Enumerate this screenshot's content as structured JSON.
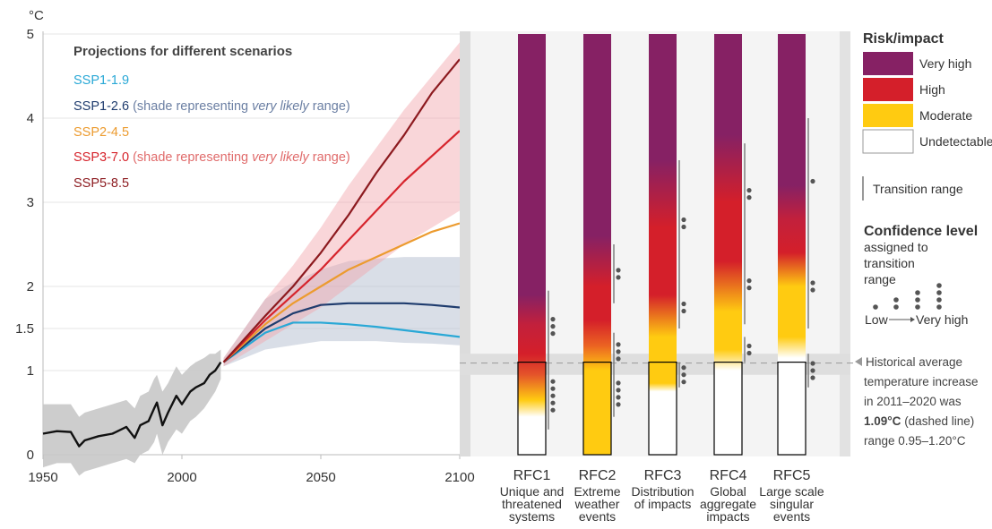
{
  "chart_data": [
    {
      "type": "line",
      "ylabel": "°C",
      "xlim": [
        1950,
        2100
      ],
      "ylim": [
        0,
        5
      ],
      "x_ticks": [
        "1950",
        "2000",
        "2050",
        "2100"
      ],
      "y_ticks": [
        "0",
        "1",
        "1.5",
        "2",
        "3",
        "4",
        "5"
      ],
      "grid": true,
      "legend_title": "Projections for different scenarios",
      "legend_position": "top-left",
      "observed": {
        "x": [
          1950,
          1955,
          1960,
          1963,
          1965,
          1970,
          1975,
          1980,
          1983,
          1985,
          1988,
          1990,
          1991,
          1993,
          1995,
          1998,
          2000,
          2003,
          2005,
          2008,
          2010,
          2012,
          2014
        ],
        "y": [
          0.25,
          0.28,
          0.27,
          0.1,
          0.17,
          0.22,
          0.25,
          0.33,
          0.2,
          0.35,
          0.4,
          0.55,
          0.62,
          0.35,
          0.5,
          0.7,
          0.6,
          0.75,
          0.8,
          0.85,
          0.95,
          1.0,
          1.1
        ],
        "range_low": [
          -0.15,
          -0.1,
          -0.1,
          -0.25,
          -0.2,
          -0.15,
          -0.1,
          -0.05,
          -0.1,
          0.0,
          0.05,
          0.15,
          0.25,
          0.0,
          0.15,
          0.3,
          0.25,
          0.4,
          0.45,
          0.55,
          0.65,
          0.75,
          0.9
        ],
        "range_high": [
          0.6,
          0.6,
          0.6,
          0.45,
          0.5,
          0.55,
          0.6,
          0.65,
          0.55,
          0.7,
          0.75,
          0.9,
          0.95,
          0.75,
          0.85,
          1.05,
          0.95,
          1.05,
          1.1,
          1.15,
          1.2,
          1.2,
          1.25
        ]
      },
      "series": [
        {
          "name": "SSP1-1.9",
          "color": "#29a8d6",
          "label": "SSP1-1.9",
          "x": [
            2015,
            2030,
            2040,
            2050,
            2060,
            2070,
            2080,
            2090,
            2100
          ],
          "y": [
            1.1,
            1.45,
            1.57,
            1.57,
            1.55,
            1.52,
            1.48,
            1.44,
            1.4
          ]
        },
        {
          "name": "SSP1-2.6",
          "color": "#1f3c6e",
          "label_main": "SSP1-2.6",
          "label_note": " (shade representing ",
          "label_em": "very likely",
          "label_end": " range)",
          "x": [
            2015,
            2030,
            2040,
            2050,
            2060,
            2070,
            2080,
            2090,
            2100
          ],
          "y": [
            1.1,
            1.5,
            1.68,
            1.78,
            1.8,
            1.8,
            1.8,
            1.78,
            1.75
          ],
          "range_low": [
            1.05,
            1.25,
            1.3,
            1.35,
            1.35,
            1.35,
            1.33,
            1.32,
            1.3
          ],
          "range_high": [
            1.15,
            1.85,
            2.05,
            2.2,
            2.3,
            2.33,
            2.35,
            2.35,
            2.35
          ]
        },
        {
          "name": "SSP2-4.5",
          "color": "#ec9b2f",
          "label": "SSP2-4.5",
          "x": [
            2015,
            2030,
            2040,
            2050,
            2060,
            2070,
            2080,
            2090,
            2100
          ],
          "y": [
            1.1,
            1.55,
            1.8,
            2.0,
            2.2,
            2.35,
            2.5,
            2.65,
            2.75
          ]
        },
        {
          "name": "SSP3-7.0",
          "color": "#d6242c",
          "label_main": "SSP3-7.0",
          "label_note": " (shade representing ",
          "label_em": "very likely",
          "label_end": " range)",
          "x": [
            2015,
            2030,
            2040,
            2050,
            2060,
            2070,
            2080,
            2090,
            2100
          ],
          "y": [
            1.1,
            1.6,
            1.9,
            2.2,
            2.55,
            2.9,
            3.25,
            3.55,
            3.85
          ],
          "range_low": [
            1.05,
            1.35,
            1.55,
            1.75,
            2.0,
            2.25,
            2.5,
            2.7,
            2.9
          ],
          "range_high": [
            1.15,
            1.85,
            2.25,
            2.7,
            3.2,
            3.65,
            4.1,
            4.5,
            4.9
          ]
        },
        {
          "name": "SSP5-8.5",
          "color": "#8c1a1f",
          "label": "SSP5-8.5",
          "x": [
            2015,
            2030,
            2040,
            2050,
            2060,
            2070,
            2080,
            2090,
            2100
          ],
          "y": [
            1.1,
            1.65,
            2.0,
            2.4,
            2.85,
            3.35,
            3.8,
            4.3,
            4.7
          ]
        }
      ],
      "historical_band": {
        "low": 0.95,
        "high": 1.2,
        "value": 1.09
      }
    },
    {
      "type": "heatmap",
      "title": "Risk/impact",
      "ylim": [
        0,
        5
      ],
      "legend_position": "right",
      "risk_levels": [
        {
          "label": "Very high",
          "color": "#862164"
        },
        {
          "label": "High",
          "color": "#d41f2a"
        },
        {
          "label": "Moderate",
          "color": "#ffcb11"
        },
        {
          "label": "Undetectable",
          "color": "#ffffff"
        }
      ],
      "transition_label": "Transition range",
      "confidence": {
        "title": "Confidence level",
        "subtitle": [
          "assigned to",
          "transition",
          "range"
        ],
        "low": "Low",
        "high": "Very high"
      },
      "historical_note": [
        "Historical average",
        "temperature increase",
        "in 2011–2020 was",
        "1.09°C",
        " (dashed line)",
        "range 0.95–1.20°C"
      ],
      "columns": [
        {
          "name": "RFC1",
          "desc": [
            "Unique and",
            "threatened",
            "systems"
          ],
          "gradient": [
            [
              0.45,
              "#ffffff"
            ],
            [
              0.65,
              "#ffcb11"
            ],
            [
              0.95,
              "#e4542a"
            ],
            [
              1.2,
              "#d41f2a"
            ],
            [
              1.55,
              "#c2203c"
            ],
            [
              1.9,
              "#862164"
            ],
            [
              5,
              "#862164"
            ]
          ],
          "transitions": [
            {
              "low": 0.3,
              "high": 1.1,
              "dots": 5
            },
            {
              "low": 1.1,
              "high": 1.95,
              "dots": 3
            }
          ]
        },
        {
          "name": "RFC2",
          "desc": [
            "Extreme",
            "weather",
            "events"
          ],
          "gradient": [
            [
              0.5,
              "#ffcb11"
            ],
            [
              1.0,
              "#ffcb11"
            ],
            [
              1.3,
              "#eb6222"
            ],
            [
              1.6,
              "#d41f2a"
            ],
            [
              2.0,
              "#d41f2a"
            ],
            [
              2.6,
              "#862164"
            ],
            [
              5,
              "#862164"
            ]
          ],
          "transitions": [
            {
              "low": 0.45,
              "high": 1.0,
              "dots": 4
            },
            {
              "low": 1.0,
              "high": 1.45,
              "dots": 3
            },
            {
              "low": 1.8,
              "high": 2.5,
              "dots": 2
            }
          ]
        },
        {
          "name": "RFC3",
          "desc": [
            "Distribution",
            "of impacts"
          ],
          "gradient": [
            [
              0.75,
              "#ffffff"
            ],
            [
              0.85,
              "#ffcb11"
            ],
            [
              1.4,
              "#ffcb11"
            ],
            [
              1.9,
              "#d41f2a"
            ],
            [
              2.7,
              "#d41f2a"
            ],
            [
              3.5,
              "#862164"
            ],
            [
              5,
              "#862164"
            ]
          ],
          "transitions": [
            {
              "low": 0.8,
              "high": 1.1,
              "dots": 3
            },
            {
              "low": 1.5,
              "high": 2.0,
              "dots": 2
            },
            {
              "low": 2.0,
              "high": 3.5,
              "dots": 2
            }
          ]
        },
        {
          "name": "RFC4",
          "desc": [
            "Global",
            "aggregate",
            "impacts"
          ],
          "gradient": [
            [
              1.0,
              "#ffffff"
            ],
            [
              1.25,
              "#ffcb11"
            ],
            [
              1.7,
              "#ffcb11"
            ],
            [
              2.3,
              "#d41f2a"
            ],
            [
              3.0,
              "#d41f2a"
            ],
            [
              3.8,
              "#862164"
            ],
            [
              5,
              "#862164"
            ]
          ],
          "transitions": [
            {
              "low": 1.1,
              "high": 1.4,
              "dots": 2
            },
            {
              "low": 1.55,
              "high": 2.5,
              "dots": 2
            },
            {
              "low": 2.5,
              "high": 3.7,
              "dots": 2
            }
          ]
        },
        {
          "name": "RFC5",
          "desc": [
            "Large scale",
            "singular",
            "events"
          ],
          "gradient": [
            [
              1.15,
              "#ffffff"
            ],
            [
              1.4,
              "#ffcb11"
            ],
            [
              2.0,
              "#ffcb11"
            ],
            [
              2.4,
              "#d41f2a"
            ],
            [
              2.8,
              "#c2203c"
            ],
            [
              3.2,
              "#862164"
            ],
            [
              5,
              "#862164"
            ]
          ],
          "transitions": [
            {
              "low": 0.8,
              "high": 1.2,
              "dots": 3
            },
            {
              "low": 1.5,
              "high": 2.5,
              "dots": 2
            },
            {
              "low": 2.5,
              "high": 4.0,
              "dots": 1
            }
          ]
        }
      ]
    }
  ]
}
